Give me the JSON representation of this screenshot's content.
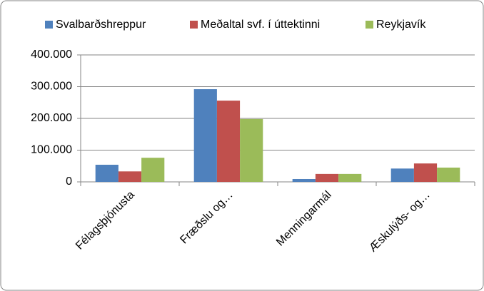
{
  "chart_data": {
    "type": "bar",
    "categories": [
      "Félagsþjónusta",
      "Fræðslu og…",
      "Menningarmál",
      "Æskulýðs- og…"
    ],
    "series": [
      {
        "name": "Svalbarðshreppur",
        "color": "#4f81bd",
        "values": [
          54000,
          292000,
          9000,
          42000
        ]
      },
      {
        "name": "Meðaltal svf. í úttektinni",
        "color": "#c0504d",
        "values": [
          33000,
          256000,
          25000,
          58000
        ]
      },
      {
        "name": "Reykjavík",
        "color": "#9bbb59",
        "values": [
          76000,
          198000,
          25000,
          45000
        ]
      }
    ],
    "ylim": [
      0,
      400000
    ],
    "yticks": [
      0,
      {
        "value": 100000,
        "label": "100.000"
      },
      {
        "value": 200000,
        "label": "200.000"
      },
      {
        "value": 300000,
        "label": "300.000"
      },
      {
        "value": 400000,
        "label": "400.000"
      }
    ],
    "grid": true,
    "legend": "top"
  }
}
